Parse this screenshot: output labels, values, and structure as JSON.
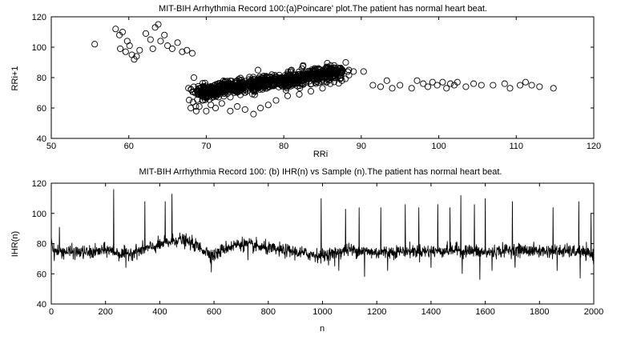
{
  "chart_data": [
    {
      "type": "scatter",
      "title": "MIT-BIH Arrhythmia Record 100:(a)Poincare' plot.The patient has normal heart beat.",
      "xlabel": "RRi",
      "ylabel": "RRi+1",
      "xlim": [
        50,
        120
      ],
      "ylim": [
        40,
        120
      ],
      "xticks": [
        "50",
        "60",
        "70",
        "80",
        "90",
        "100",
        "110",
        "120"
      ],
      "yticks": [
        "40",
        "60",
        "80",
        "100",
        "120"
      ],
      "grid": false,
      "marker": "open-circle",
      "points": [
        [
          55.6,
          102
        ],
        [
          58.3,
          112
        ],
        [
          58.8,
          108
        ],
        [
          59.2,
          110
        ],
        [
          58.9,
          99
        ],
        [
          59.6,
          97
        ],
        [
          60.1,
          101
        ],
        [
          60.4,
          95
        ],
        [
          60.7,
          92
        ],
        [
          61.0,
          94
        ],
        [
          61.4,
          98
        ],
        [
          59.8,
          104
        ],
        [
          62.2,
          109
        ],
        [
          62.8,
          105
        ],
        [
          63.1,
          99
        ],
        [
          63.4,
          113
        ],
        [
          63.8,
          115
        ],
        [
          64.1,
          104
        ],
        [
          64.6,
          108
        ],
        [
          65.0,
          101
        ],
        [
          65.6,
          99
        ],
        [
          66.3,
          103
        ],
        [
          66.9,
          97
        ],
        [
          67.5,
          98
        ],
        [
          68.2,
          96
        ],
        [
          67.7,
          73
        ],
        [
          68.4,
          80
        ],
        [
          68.0,
          60
        ],
        [
          68.7,
          58
        ],
        [
          69.1,
          61
        ],
        [
          69.5,
          65
        ],
        [
          70.0,
          58
        ],
        [
          70.6,
          62
        ],
        [
          71.2,
          60
        ],
        [
          72.0,
          63
        ],
        [
          73.1,
          58
        ],
        [
          74.0,
          61
        ],
        [
          75.0,
          59
        ],
        [
          76.1,
          56
        ],
        [
          77.0,
          60
        ],
        [
          78.0,
          62
        ],
        [
          79.0,
          65
        ],
        [
          81.0,
          85
        ],
        [
          82.5,
          88
        ],
        [
          84.0,
          86
        ],
        [
          85.5,
          87
        ],
        [
          86.5,
          88
        ],
        [
          88.0,
          90
        ],
        [
          89.0,
          84
        ],
        [
          90.3,
          84
        ],
        [
          87.5,
          78
        ],
        [
          86.0,
          76
        ],
        [
          85.0,
          73
        ],
        [
          83.5,
          71
        ],
        [
          82.0,
          69
        ],
        [
          80.5,
          68
        ],
        [
          91.5,
          75
        ],
        [
          92.5,
          74
        ],
        [
          93.3,
          78
        ],
        [
          94.0,
          73
        ],
        [
          95.0,
          75
        ],
        [
          96.5,
          73
        ],
        [
          97.2,
          78
        ],
        [
          98.0,
          76
        ],
        [
          98.6,
          74
        ],
        [
          99.2,
          77
        ],
        [
          99.8,
          75
        ],
        [
          100.5,
          77
        ],
        [
          101.0,
          73
        ],
        [
          101.5,
          76
        ],
        [
          102.0,
          75
        ],
        [
          102.4,
          77
        ],
        [
          103.5,
          74
        ],
        [
          104.5,
          76
        ],
        [
          105.5,
          75
        ],
        [
          107.0,
          75
        ],
        [
          108.5,
          76
        ],
        [
          109.2,
          73
        ],
        [
          110.5,
          75
        ],
        [
          111.2,
          77
        ],
        [
          112.0,
          75
        ],
        [
          113.0,
          74
        ],
        [
          114.8,
          73
        ]
      ],
      "cluster": {
        "description_source": "dense band",
        "x_range": [
          69,
          90
        ],
        "y_center_at_x70": 71,
        "y_center_at_x88": 84
      }
    },
    {
      "type": "line",
      "title": "MIT-BIH Arrhythmia Record 100: (b) IHR(n) vs Sample (n).The patient has normal heart beat.",
      "xlabel": "n",
      "ylabel": "IHR(n)",
      "xlim": [
        0,
        2000
      ],
      "ylim": [
        40,
        120
      ],
      "xticks": [
        "0",
        "200",
        "400",
        "600",
        "800",
        "1000",
        "1200",
        "1400",
        "1600",
        "1800",
        "2000"
      ],
      "yticks": [
        "40",
        "60",
        "80",
        "100",
        "120"
      ],
      "grid": false,
      "baseline_segments": [
        [
          0,
          75
        ],
        [
          150,
          74
        ],
        [
          210,
          76
        ],
        [
          260,
          73
        ],
        [
          320,
          75
        ],
        [
          380,
          78
        ],
        [
          420,
          80
        ],
        [
          470,
          83
        ],
        [
          520,
          80
        ],
        [
          560,
          76
        ],
        [
          600,
          72
        ],
        [
          640,
          77
        ],
        [
          700,
          80
        ],
        [
          760,
          78
        ],
        [
          820,
          76
        ],
        [
          880,
          75
        ],
        [
          950,
          73
        ],
        [
          1000,
          72
        ],
        [
          1050,
          74
        ],
        [
          1100,
          76
        ],
        [
          1150,
          75
        ],
        [
          1200,
          74
        ],
        [
          1300,
          75
        ],
        [
          1400,
          75
        ],
        [
          1500,
          76
        ],
        [
          1600,
          74
        ],
        [
          1700,
          76
        ],
        [
          1800,
          75
        ],
        [
          1900,
          75
        ],
        [
          1960,
          74
        ],
        [
          2000,
          72
        ]
      ],
      "spikes": [
        [
          30,
          91
        ],
        [
          230,
          116
        ],
        [
          275,
          64
        ],
        [
          345,
          108
        ],
        [
          420,
          108
        ],
        [
          445,
          113
        ],
        [
          590,
          61
        ],
        [
          725,
          69
        ],
        [
          995,
          110
        ],
        [
          1045,
          65
        ],
        [
          1060,
          62
        ],
        [
          1085,
          103
        ],
        [
          1110,
          72
        ],
        [
          1135,
          104
        ],
        [
          1155,
          58
        ],
        [
          1215,
          104
        ],
        [
          1240,
          62
        ],
        [
          1305,
          106
        ],
        [
          1355,
          104
        ],
        [
          1400,
          64
        ],
        [
          1425,
          106
        ],
        [
          1470,
          104
        ],
        [
          1510,
          112
        ],
        [
          1515,
          60
        ],
        [
          1560,
          106
        ],
        [
          1580,
          56
        ],
        [
          1600,
          110
        ],
        [
          1625,
          62
        ],
        [
          1700,
          108
        ],
        [
          1710,
          64
        ],
        [
          1850,
          104
        ],
        [
          1865,
          62
        ],
        [
          1945,
          108
        ],
        [
          1950,
          57
        ],
        [
          1990,
          100
        ]
      ]
    }
  ]
}
